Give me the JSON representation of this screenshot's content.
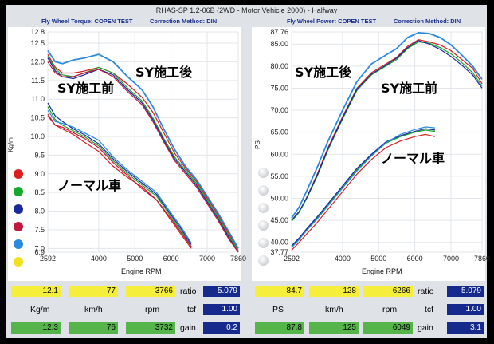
{
  "window_title": "RHAS-SP 1.2-06B  (2WD - Motor Vehicle 2000) - Halfway",
  "left": {
    "header_left": "Fly Wheel Torque: COPEN TEST",
    "header_right": "Correction Method: DIN",
    "ylabel": "Kg/m",
    "xlabel": "Engine RPM",
    "y_ticks": [
      "12.8",
      "12.5",
      "12.0",
      "11.5",
      "11.0",
      "10.5",
      "10.0",
      "9.5",
      "9.0",
      "8.5",
      "8.0",
      "7.5",
      "7.0",
      "6.9"
    ],
    "x_ticks": [
      "2592",
      "4000",
      "5000",
      "6000",
      "7000",
      "7860"
    ],
    "label_after": "SY施工後",
    "label_before": "SY施工前",
    "label_normal": "ノーマル車",
    "readout": {
      "value1": "12.1",
      "value2": "77",
      "value3": "3766",
      "value4": "12.3",
      "value5": "76",
      "value6": "3732",
      "unit1": "Kg/m",
      "unit2": "km/h",
      "unit3": "rpm",
      "ratio_label": "ratio",
      "ratio": "5.079",
      "tcf_label": "tcf",
      "tcf": "1.00",
      "gain_label": "gain",
      "gain": "0.2"
    }
  },
  "right": {
    "header_left": "Fly Wheel Power: COPEN TEST",
    "header_right": "Correction Method: DIN",
    "ylabel": "PS",
    "xlabel": "Engine RPM",
    "y_ticks": [
      "87.76",
      "85.00",
      "80.00",
      "75.00",
      "70.00",
      "65.00",
      "60.00",
      "55.00",
      "50.00",
      "45.00",
      "40.00",
      "37.77"
    ],
    "x_ticks": [
      "2592",
      "4000",
      "5000",
      "6000",
      "7000",
      "7860"
    ],
    "label_after": "SY施工後",
    "label_before": "SY施工前",
    "label_normal": "ノーマル車",
    "readout": {
      "value1": "84.7",
      "value2": "128",
      "value3": "6266",
      "value4": "87.8",
      "value5": "125",
      "value6": "6049",
      "unit1": "PS",
      "unit2": "km/h",
      "unit3": "rpm",
      "ratio_label": "ratio",
      "ratio": "5.079",
      "tcf_label": "tcf",
      "tcf": "1.00",
      "gain_label": "gain",
      "gain": "3.1"
    }
  },
  "series_colors": [
    "#dc1e1e",
    "#16a82c",
    "#1a2a9a",
    "#c0183e",
    "#2a8ae0",
    "#f0e020"
  ],
  "chart_data": [
    {
      "type": "line",
      "title": "Fly Wheel Torque: COPEN TEST",
      "xlabel": "Engine RPM",
      "ylabel": "Kg/m",
      "xlim": [
        2592,
        7860
      ],
      "ylim": [
        6.9,
        12.8
      ],
      "x": [
        2592,
        2800,
        3000,
        3300,
        3600,
        4000,
        4400,
        4800,
        5200,
        5500,
        5800,
        6100,
        6400,
        6700,
        7000,
        7300,
        7600,
        7860
      ],
      "series": [
        {
          "name": "SY施工後",
          "color": "#2a8ae0",
          "values": [
            12.3,
            12.0,
            11.95,
            12.05,
            12.1,
            12.2,
            12.0,
            11.6,
            11.25,
            10.8,
            10.2,
            9.65,
            9.2,
            8.85,
            8.4,
            7.95,
            7.45,
            7.0
          ]
        },
        {
          "name": "SY施工前 (red)",
          "color": "#dc1e1e",
          "values": [
            12.2,
            11.85,
            11.7,
            11.7,
            11.75,
            11.85,
            11.7,
            11.4,
            11.05,
            10.65,
            10.1,
            9.55,
            9.15,
            8.8,
            8.35,
            7.9,
            7.4,
            6.95
          ]
        },
        {
          "name": "SY施工前 (green)",
          "color": "#16a82c",
          "values": [
            12.15,
            11.8,
            11.65,
            11.6,
            11.7,
            11.85,
            11.7,
            11.3,
            10.95,
            10.5,
            9.95,
            9.45,
            9.1,
            8.75,
            8.3,
            7.85,
            7.35,
            6.95
          ]
        },
        {
          "name": "SY施工前 (navy)",
          "color": "#1a2a9a",
          "values": [
            12.1,
            11.75,
            11.6,
            11.55,
            11.65,
            11.8,
            11.65,
            11.25,
            10.9,
            10.45,
            9.9,
            9.4,
            9.05,
            8.7,
            8.25,
            7.8,
            7.3,
            6.9
          ]
        },
        {
          "name": "SY施工前 (crimson)",
          "color": "#c0183e",
          "values": [
            12.0,
            11.7,
            11.6,
            11.6,
            11.7,
            11.8,
            11.6,
            11.2,
            10.85,
            10.4,
            9.85,
            9.35,
            9.0,
            8.65,
            8.2,
            7.75,
            7.25,
            6.9
          ]
        },
        {
          "name": "ノーマル車 (red)",
          "color": "#dc1e1e",
          "x": [
            2592,
            2800,
            3000,
            3300,
            3600,
            4000,
            4400,
            4800,
            5200,
            5600,
            6000,
            6300,
            6560
          ],
          "values": [
            10.6,
            10.3,
            10.2,
            10.05,
            9.85,
            9.6,
            9.2,
            8.9,
            8.65,
            8.3,
            7.75,
            7.35,
            7.0
          ]
        },
        {
          "name": "ノーマル車 (green)",
          "color": "#16a82c",
          "x": [
            2592,
            2800,
            3000,
            3300,
            3600,
            4000,
            4400,
            4800,
            5200,
            5600,
            6000,
            6300,
            6560
          ],
          "values": [
            10.8,
            10.45,
            10.3,
            10.15,
            10.0,
            9.75,
            9.35,
            9.0,
            8.7,
            8.4,
            7.85,
            7.45,
            7.05
          ]
        },
        {
          "name": "ノーマル車 (navy)",
          "color": "#1a2a9a",
          "x": [
            2592,
            2800,
            3000,
            3300,
            3600,
            4000,
            4400,
            4800,
            5200,
            5600,
            6000,
            6300,
            6560
          ],
          "values": [
            10.9,
            10.55,
            10.4,
            10.2,
            10.05,
            9.8,
            9.4,
            9.05,
            8.75,
            8.45,
            7.9,
            7.5,
            7.1
          ]
        },
        {
          "name": "ノーマル車 (blue)",
          "color": "#2a8ae0",
          "x": [
            2592,
            2800,
            3000,
            3300,
            3600,
            4000,
            4400,
            4800,
            5200,
            5600,
            6000,
            6300,
            6560
          ],
          "values": [
            10.7,
            10.4,
            10.35,
            10.25,
            10.1,
            9.9,
            9.45,
            9.1,
            8.8,
            8.5,
            7.95,
            7.55,
            7.15
          ]
        },
        {
          "name": "ノーマル車 (crimson)",
          "color": "#c0183e",
          "x": [
            2592,
            2800,
            3000,
            3300,
            3600,
            4000,
            4400,
            4800,
            5200,
            5600,
            6000,
            6300,
            6560
          ],
          "values": [
            10.55,
            10.3,
            10.25,
            10.1,
            9.95,
            9.7,
            9.3,
            8.95,
            8.6,
            8.3,
            7.8,
            7.4,
            7.05
          ]
        }
      ]
    },
    {
      "type": "line",
      "title": "Fly Wheel Power: COPEN TEST",
      "xlabel": "Engine RPM",
      "ylabel": "PS",
      "xlim": [
        2592,
        7860
      ],
      "ylim": [
        37.77,
        87.76
      ],
      "x": [
        2592,
        2800,
        3000,
        3300,
        3600,
        4000,
        4400,
        4800,
        5200,
        5500,
        5800,
        6100,
        6400,
        6700,
        7000,
        7300,
        7600,
        7860
      ],
      "series": [
        {
          "name": "SY施工後",
          "color": "#2a8ae0",
          "values": [
            45.5,
            48.0,
            51.5,
            57.0,
            63.0,
            70.0,
            76.5,
            80.5,
            82.5,
            84.0,
            86.5,
            87.6,
            87.4,
            86.5,
            84.8,
            82.5,
            80.0,
            77.0
          ]
        },
        {
          "name": "SY施工前 (red)",
          "color": "#dc1e1e",
          "values": [
            45.0,
            47.0,
            50.0,
            55.5,
            61.5,
            68.5,
            75.0,
            78.5,
            80.5,
            82.0,
            84.5,
            86.0,
            85.5,
            84.8,
            83.5,
            81.5,
            79.5,
            76.0
          ]
        },
        {
          "name": "SY施工前 (green)",
          "color": "#16a82c",
          "values": [
            44.8,
            46.8,
            49.8,
            55.0,
            61.0,
            68.0,
            74.5,
            78.0,
            80.0,
            81.5,
            84.0,
            85.5,
            85.2,
            84.2,
            82.8,
            80.8,
            78.5,
            75.5
          ]
        },
        {
          "name": "SY施工前 (navy)",
          "color": "#1a2a9a",
          "values": [
            45.0,
            47.0,
            50.0,
            55.2,
            61.2,
            68.2,
            74.8,
            78.2,
            80.2,
            81.8,
            84.2,
            85.8,
            85.0,
            83.8,
            82.2,
            80.2,
            78.0,
            75.0
          ]
        },
        {
          "name": "ノーマル車 (red)",
          "color": "#dc1e1e",
          "x": [
            2592,
            2800,
            3000,
            3300,
            3600,
            4000,
            4400,
            4800,
            5200,
            5600,
            6000,
            6300,
            6560
          ],
          "values": [
            38.2,
            40.0,
            41.8,
            44.5,
            47.5,
            51.5,
            55.5,
            58.8,
            61.5,
            63.0,
            64.0,
            64.5,
            64.0
          ]
        },
        {
          "name": "ノーマル車 (green)",
          "color": "#16a82c",
          "x": [
            2592,
            2800,
            3000,
            3300,
            3600,
            4000,
            4400,
            4800,
            5200,
            5600,
            6000,
            6300,
            6560
          ],
          "values": [
            39.0,
            40.8,
            42.8,
            45.5,
            48.5,
            52.5,
            56.5,
            59.8,
            62.5,
            64.0,
            65.0,
            65.5,
            65.2
          ]
        },
        {
          "name": "ノーマル車 (navy)",
          "color": "#1a2a9a",
          "x": [
            2592,
            2800,
            3000,
            3300,
            3600,
            4000,
            4400,
            4800,
            5200,
            5600,
            6000,
            6300,
            6560
          ],
          "values": [
            39.2,
            41.0,
            43.0,
            45.8,
            48.8,
            52.8,
            56.8,
            60.0,
            62.8,
            64.2,
            65.2,
            65.8,
            65.5
          ]
        },
        {
          "name": "ノーマル車 (blue)",
          "color": "#2a8ae0",
          "x": [
            2592,
            2800,
            3000,
            3300,
            3600,
            4000,
            4400,
            4800,
            5200,
            5600,
            6000,
            6300,
            6560
          ],
          "values": [
            38.8,
            40.6,
            42.6,
            45.3,
            48.3,
            52.3,
            56.2,
            59.6,
            62.6,
            64.5,
            65.6,
            66.2,
            66.0
          ]
        }
      ]
    }
  ]
}
